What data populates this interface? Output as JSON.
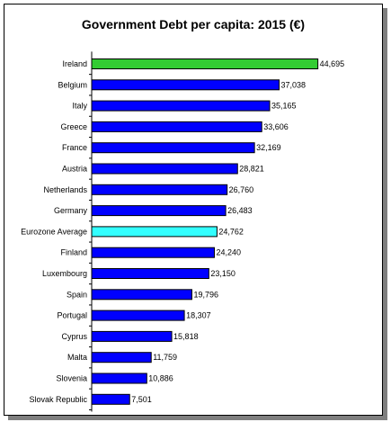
{
  "chart_data": {
    "type": "bar",
    "orientation": "horizontal",
    "title": "Government Debt per capita: 2015 (€)",
    "xlabel": "",
    "ylabel": "",
    "xlim": [
      0,
      46000
    ],
    "grid": false,
    "legend": "none",
    "categories": [
      "Ireland",
      "Belgium",
      "Italy",
      "Greece",
      "France",
      "Austria",
      "Netherlands",
      "Germany",
      "Eurozone Average",
      "Finland",
      "Luxembourg",
      "Spain",
      "Portugal",
      "Cyprus",
      "Malta",
      "Slovenia",
      "Slovak Republic"
    ],
    "values": [
      44695,
      37038,
      35165,
      33606,
      32169,
      28821,
      26760,
      26483,
      24762,
      24240,
      23150,
      19796,
      18307,
      15818,
      11759,
      10886,
      7501
    ],
    "value_labels": [
      "44,695",
      "37,038",
      "35,165",
      "33,606",
      "32,169",
      "28,821",
      "26,760",
      "26,483",
      "24,762",
      "24,240",
      "23,150",
      "19,796",
      "18,307",
      "15,818",
      "11,759",
      "10,886",
      "7,501"
    ],
    "colors": {
      "default": "#0000ff",
      "highlight": {
        "Ireland": "#33cc33",
        "Eurozone Average": "#33ffff"
      },
      "border": "#000000"
    }
  }
}
